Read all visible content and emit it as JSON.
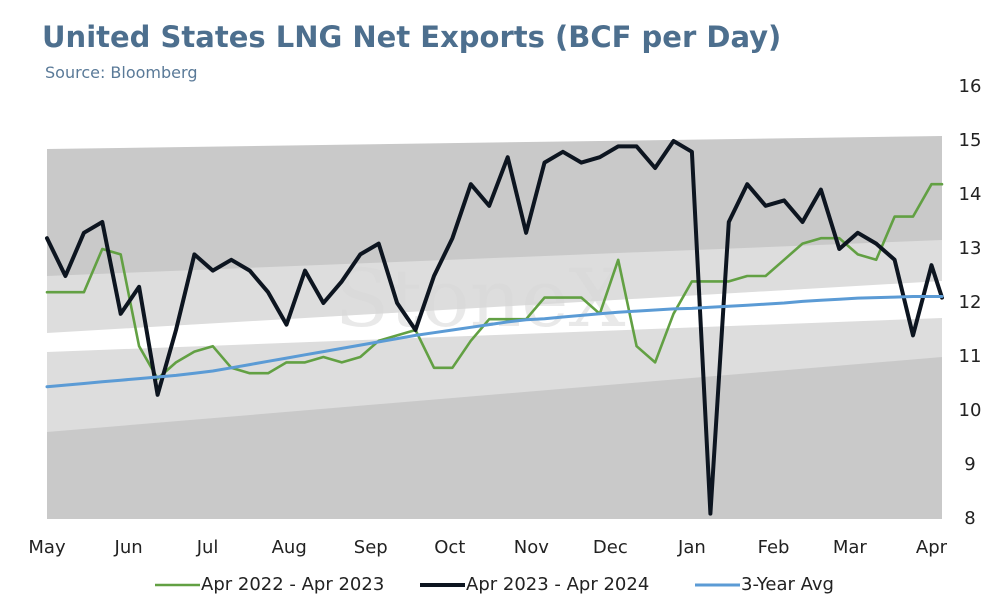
{
  "chart_data": {
    "type": "line",
    "title": "United States LNG Net Exports (BCF per Day)",
    "subtitle": "Source: Bloomberg",
    "watermark": "StoneX",
    "x": [
      0,
      7,
      14,
      21,
      28,
      35,
      42,
      49,
      56,
      63,
      70,
      77,
      84,
      91,
      98,
      105,
      112,
      119,
      126,
      133,
      140,
      147,
      154,
      161,
      168,
      175,
      182,
      189,
      196,
      203,
      210,
      217,
      224,
      231,
      238,
      245,
      252,
      259,
      266,
      273,
      280,
      287,
      294,
      301,
      308,
      315,
      322,
      329,
      336,
      340
    ],
    "xlim": [
      0,
      340
    ],
    "xticks": [
      {
        "value": 0,
        "label": "May"
      },
      {
        "value": 31,
        "label": "Jun"
      },
      {
        "value": 61,
        "label": "Jul"
      },
      {
        "value": 92,
        "label": "Aug"
      },
      {
        "value": 123,
        "label": "Sep"
      },
      {
        "value": 153,
        "label": "Oct"
      },
      {
        "value": 184,
        "label": "Nov"
      },
      {
        "value": 214,
        "label": "Dec"
      },
      {
        "value": 245,
        "label": "Jan"
      },
      {
        "value": 276,
        "label": "Feb"
      },
      {
        "value": 305,
        "label": "Mar"
      },
      {
        "value": 336,
        "label": "Apr"
      }
    ],
    "ylim": [
      8,
      16
    ],
    "yticks": [
      8,
      9,
      10,
      11,
      12,
      13,
      14,
      15,
      16
    ],
    "y_axis_side": "right",
    "legend": "bottom",
    "series": [
      {
        "name": "Apr 2022 - Apr 2023",
        "color": "#62a043",
        "values": [
          12.2,
          12.2,
          12.2,
          13.0,
          12.9,
          11.2,
          10.6,
          10.9,
          11.1,
          11.2,
          10.8,
          10.7,
          10.7,
          10.9,
          10.9,
          11.0,
          10.9,
          11.0,
          11.3,
          11.4,
          11.5,
          10.8,
          10.8,
          11.3,
          11.7,
          11.7,
          11.7,
          12.1,
          12.1,
          12.1,
          11.8,
          12.8,
          11.2,
          10.9,
          11.8,
          12.4,
          12.4,
          12.4,
          12.5,
          12.5,
          12.8,
          13.1,
          13.2,
          13.2,
          12.9,
          12.8,
          13.6,
          13.6,
          14.2,
          14.2
        ]
      },
      {
        "name": "Apr 2023 - Apr 2024",
        "color": "#0d1520",
        "values": [
          13.2,
          12.5,
          13.3,
          13.5,
          11.8,
          12.3,
          10.3,
          11.5,
          12.9,
          12.6,
          12.8,
          12.6,
          12.2,
          11.6,
          12.6,
          12.0,
          12.4,
          12.9,
          13.1,
          12.0,
          11.5,
          12.5,
          13.2,
          14.2,
          13.8,
          14.7,
          13.3,
          14.6,
          14.8,
          14.6,
          14.7,
          14.9,
          14.9,
          14.5,
          15.0,
          14.8,
          8.1,
          13.5,
          14.2,
          13.8,
          13.9,
          13.5,
          14.1,
          13.0,
          13.3,
          13.1,
          12.8,
          11.4,
          12.7,
          12.1
        ]
      },
      {
        "name": "3-Year Avg",
        "color": "#5b9bd5",
        "values": [
          10.45,
          10.48,
          10.51,
          10.54,
          10.57,
          10.6,
          10.63,
          10.66,
          10.7,
          10.74,
          10.8,
          10.86,
          10.92,
          10.98,
          11.04,
          11.1,
          11.16,
          11.22,
          11.28,
          11.34,
          11.4,
          11.45,
          11.5,
          11.55,
          11.6,
          11.65,
          11.69,
          11.71,
          11.74,
          11.77,
          11.8,
          11.83,
          11.85,
          11.87,
          11.89,
          11.9,
          11.92,
          11.94,
          11.96,
          11.98,
          12.0,
          12.03,
          12.05,
          12.07,
          12.09,
          12.1,
          12.11,
          12.12,
          12.12,
          12.12
        ]
      }
    ]
  }
}
